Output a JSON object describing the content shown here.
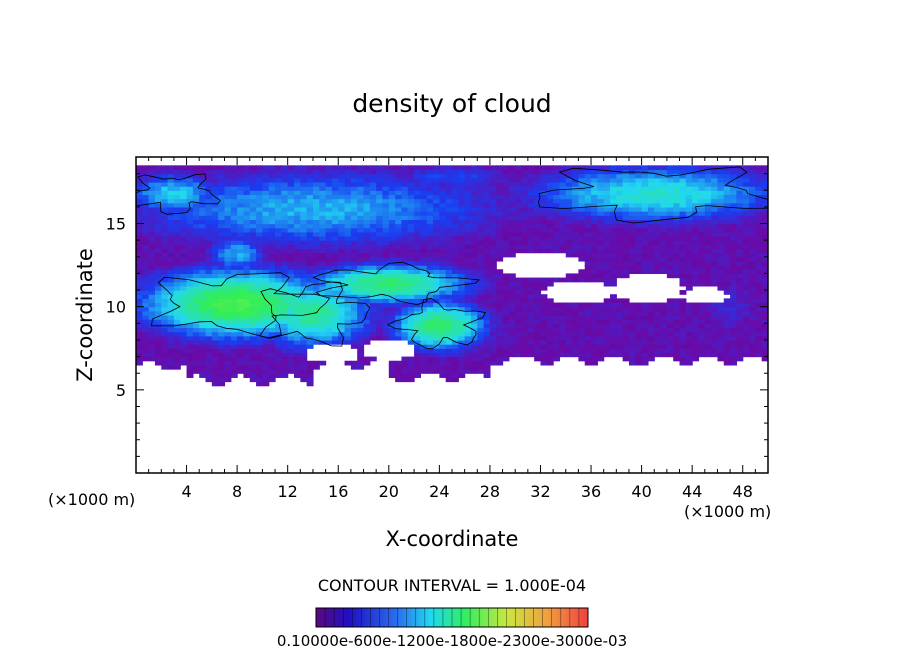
{
  "chart_data": {
    "type": "heatmap",
    "title": "density of cloud",
    "xlabel": "X-coordinate",
    "ylabel": "Z-coordinate",
    "x_unit_label_left": "(×1000 m)",
    "x_unit_label_right": "(×1000 m)",
    "xlim": [
      0,
      50
    ],
    "ylim": [
      0,
      19
    ],
    "x_ticks": [
      4,
      8,
      12,
      16,
      20,
      24,
      28,
      32,
      36,
      40,
      44,
      48
    ],
    "y_ticks": [
      5,
      10,
      15
    ],
    "contour_interval_label": "CONTOUR INTERVAL = 1.000E-04",
    "colorbar_labels_text": "0.10000e-600e-1200e-1800e-2300e-3000e-03",
    "colorbar_range": [
      0.0001,
      0.003
    ],
    "colors": {
      "low": "#6a0aa8",
      "blue": "#1a3cf0",
      "cyan": "#22d8f0",
      "green": "#33ee55"
    },
    "blobs": [
      {
        "x": 14,
        "z": 15.9,
        "rx": 17,
        "rz": 2.6,
        "v": 0.45
      },
      {
        "x": 41,
        "z": 16.8,
        "rx": 11,
        "rz": 1.9,
        "v": 0.55
      },
      {
        "x": 3,
        "z": 16.8,
        "rx": 4,
        "rz": 1.4,
        "v": 0.5
      },
      {
        "x": 25,
        "z": 17.8,
        "rx": 6,
        "rz": 0.9,
        "v": 0.3
      },
      {
        "x": 8,
        "z": 10.2,
        "rx": 8,
        "rz": 2.2,
        "v": 0.8
      },
      {
        "x": 14,
        "z": 9.6,
        "rx": 5,
        "rz": 2.2,
        "v": 0.65
      },
      {
        "x": 20,
        "z": 11.4,
        "rx": 7,
        "rz": 1.3,
        "v": 0.7
      },
      {
        "x": 24,
        "z": 8.9,
        "rx": 4,
        "rz": 1.6,
        "v": 0.72
      },
      {
        "x": 8,
        "z": 13.2,
        "rx": 2.5,
        "rz": 1.2,
        "v": 0.45
      },
      {
        "x": 47,
        "z": 10,
        "rx": 3,
        "rz": 2,
        "v": 0.22
      }
    ]
  }
}
